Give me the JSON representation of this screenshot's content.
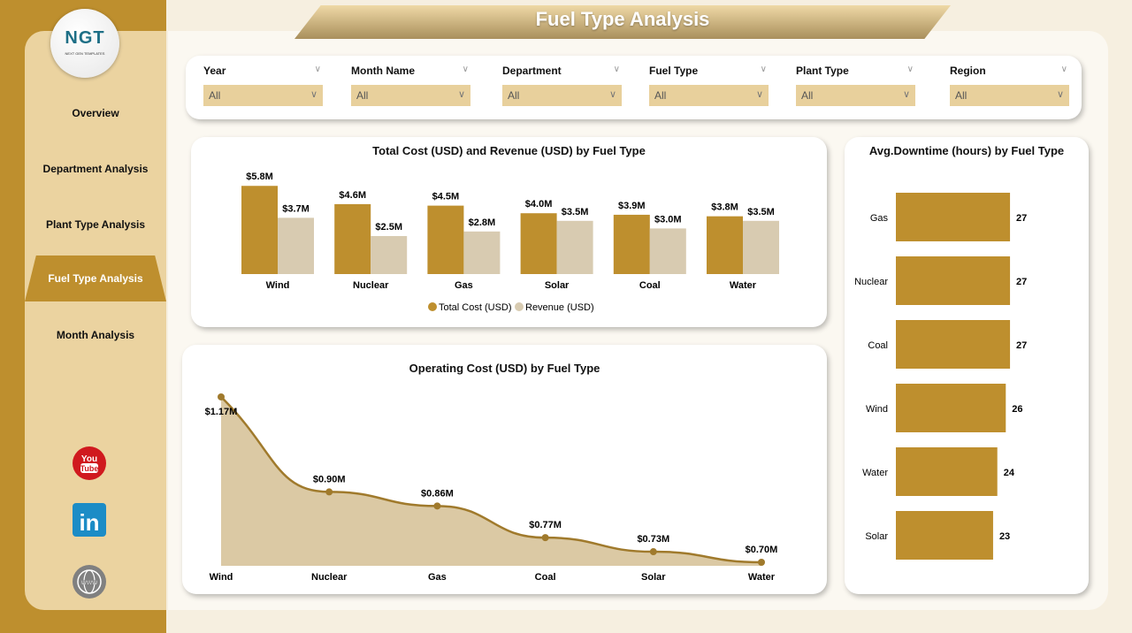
{
  "title": "Fuel Type Analysis",
  "logo": {
    "text": "NGT",
    "subtitle": "NEXT GEN TEMPLATES"
  },
  "nav": [
    {
      "label": "Overview"
    },
    {
      "label": "Department Analysis"
    },
    {
      "label": "Plant Type Analysis"
    },
    {
      "label": "Fuel Type Analysis",
      "active": true
    },
    {
      "label": "Month Analysis"
    }
  ],
  "social": [
    "youtube-icon",
    "linkedin-icon",
    "website-icon"
  ],
  "filters": [
    {
      "label": "Year",
      "value": "All"
    },
    {
      "label": "Month Name",
      "value": "All"
    },
    {
      "label": "Department",
      "value": "All"
    },
    {
      "label": "Fuel Type",
      "value": "All"
    },
    {
      "label": "Plant Type",
      "value": "All"
    },
    {
      "label": "Region",
      "value": "All"
    }
  ],
  "colors": {
    "gold": "#BE8F2E",
    "beige": "#D8CBB1",
    "line": "#A07A2C",
    "area": "#DBC9A4"
  },
  "chart_data": [
    {
      "type": "bar",
      "title": "Total Cost (USD) and Revenue (USD) by Fuel Type",
      "categories": [
        "Wind",
        "Nuclear",
        "Gas",
        "Solar",
        "Coal",
        "Water"
      ],
      "series": [
        {
          "name": "Total Cost (USD)",
          "values": [
            5.8,
            4.6,
            4.5,
            4.0,
            3.9,
            3.8
          ],
          "labels": [
            "$5.8M",
            "$4.6M",
            "$4.5M",
            "$4.0M",
            "$3.9M",
            "$3.8M"
          ]
        },
        {
          "name": "Revenue (USD)",
          "values": [
            3.7,
            2.5,
            2.8,
            3.5,
            3.0,
            3.5
          ],
          "labels": [
            "$3.7M",
            "$2.5M",
            "$2.8M",
            "$3.5M",
            "$3.0M",
            "$3.5M"
          ]
        }
      ],
      "unit": "M USD",
      "legend": "bottom"
    },
    {
      "type": "area",
      "title": "Operating Cost (USD) by Fuel Type",
      "categories": [
        "Wind",
        "Nuclear",
        "Gas",
        "Coal",
        "Solar",
        "Water"
      ],
      "values": [
        1.17,
        0.9,
        0.86,
        0.77,
        0.73,
        0.7
      ],
      "labels": [
        "$1.17M",
        "$0.90M",
        "$0.86M",
        "$0.77M",
        "$0.73M",
        "$0.70M"
      ],
      "unit": "M USD"
    },
    {
      "type": "bar",
      "orientation": "horizontal",
      "title": "Avg.Downtime (hours) by Fuel Type",
      "categories": [
        "Gas",
        "Nuclear",
        "Coal",
        "Wind",
        "Water",
        "Solar"
      ],
      "values": [
        27,
        27,
        27,
        26,
        24,
        23
      ],
      "labels": [
        "27",
        "27",
        "27",
        "26",
        "24",
        "23"
      ]
    }
  ]
}
